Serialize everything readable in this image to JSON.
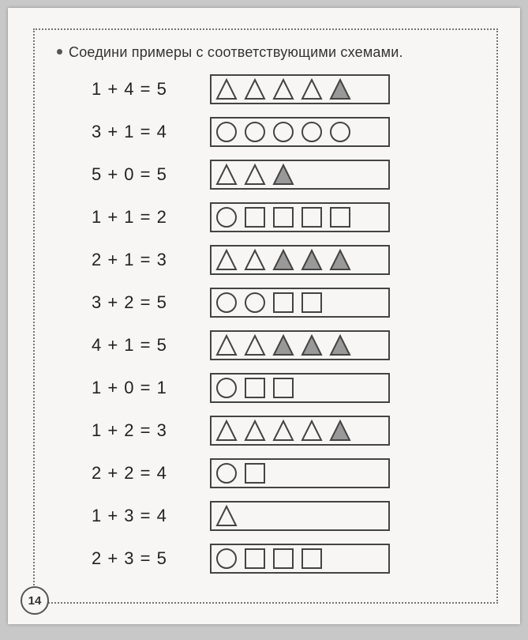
{
  "title": "Соедини примеры с соответствующими схемами.",
  "page_number": "14",
  "stroke_color": "#444",
  "fill_color": "#999",
  "bg_color": "#f7f6f4",
  "rows": [
    {
      "a": 1,
      "op": "+",
      "b": 4,
      "eq": "=",
      "r": 5,
      "shapes": [
        {
          "type": "triangle",
          "filled": false
        },
        {
          "type": "triangle",
          "filled": false
        },
        {
          "type": "triangle",
          "filled": false
        },
        {
          "type": "triangle",
          "filled": false
        },
        {
          "type": "triangle",
          "filled": true
        }
      ]
    },
    {
      "a": 3,
      "op": "+",
      "b": 1,
      "eq": "=",
      "r": 4,
      "shapes": [
        {
          "type": "circle",
          "filled": false
        },
        {
          "type": "circle",
          "filled": false
        },
        {
          "type": "circle",
          "filled": false
        },
        {
          "type": "circle",
          "filled": false
        },
        {
          "type": "circle",
          "filled": false
        }
      ]
    },
    {
      "a": 5,
      "op": "+",
      "b": 0,
      "eq": "=",
      "r": 5,
      "shapes": [
        {
          "type": "triangle",
          "filled": false
        },
        {
          "type": "triangle",
          "filled": false
        },
        {
          "type": "triangle",
          "filled": true
        }
      ]
    },
    {
      "a": 1,
      "op": "+",
      "b": 1,
      "eq": "=",
      "r": 2,
      "shapes": [
        {
          "type": "circle",
          "filled": false
        },
        {
          "type": "square",
          "filled": false
        },
        {
          "type": "square",
          "filled": false
        },
        {
          "type": "square",
          "filled": false
        },
        {
          "type": "square",
          "filled": false
        }
      ]
    },
    {
      "a": 2,
      "op": "+",
      "b": 1,
      "eq": "=",
      "r": 3,
      "shapes": [
        {
          "type": "triangle",
          "filled": false
        },
        {
          "type": "triangle",
          "filled": false
        },
        {
          "type": "triangle",
          "filled": true
        },
        {
          "type": "triangle",
          "filled": true
        },
        {
          "type": "triangle",
          "filled": true
        }
      ]
    },
    {
      "a": 3,
      "op": "+",
      "b": 2,
      "eq": "=",
      "r": 5,
      "shapes": [
        {
          "type": "circle",
          "filled": false
        },
        {
          "type": "circle",
          "filled": false
        },
        {
          "type": "square",
          "filled": false
        },
        {
          "type": "square",
          "filled": false
        }
      ]
    },
    {
      "a": 4,
      "op": "+",
      "b": 1,
      "eq": "=",
      "r": 5,
      "shapes": [
        {
          "type": "triangle",
          "filled": false
        },
        {
          "type": "triangle",
          "filled": false
        },
        {
          "type": "triangle",
          "filled": true
        },
        {
          "type": "triangle",
          "filled": true
        },
        {
          "type": "triangle",
          "filled": true
        }
      ]
    },
    {
      "a": 1,
      "op": "+",
      "b": 0,
      "eq": "=",
      "r": 1,
      "shapes": [
        {
          "type": "circle",
          "filled": false
        },
        {
          "type": "square",
          "filled": false
        },
        {
          "type": "square",
          "filled": false
        }
      ]
    },
    {
      "a": 1,
      "op": "+",
      "b": 2,
      "eq": "=",
      "r": 3,
      "shapes": [
        {
          "type": "triangle",
          "filled": false
        },
        {
          "type": "triangle",
          "filled": false
        },
        {
          "type": "triangle",
          "filled": false
        },
        {
          "type": "triangle",
          "filled": false
        },
        {
          "type": "triangle",
          "filled": true
        }
      ]
    },
    {
      "a": 2,
      "op": "+",
      "b": 2,
      "eq": "=",
      "r": 4,
      "shapes": [
        {
          "type": "circle",
          "filled": false
        },
        {
          "type": "square",
          "filled": false
        }
      ]
    },
    {
      "a": 1,
      "op": "+",
      "b": 3,
      "eq": "=",
      "r": 4,
      "shapes": [
        {
          "type": "triangle",
          "filled": false
        }
      ]
    },
    {
      "a": 2,
      "op": "+",
      "b": 3,
      "eq": "=",
      "r": 5,
      "shapes": [
        {
          "type": "circle",
          "filled": false
        },
        {
          "type": "square",
          "filled": false
        },
        {
          "type": "square",
          "filled": false
        },
        {
          "type": "square",
          "filled": false
        }
      ]
    }
  ]
}
